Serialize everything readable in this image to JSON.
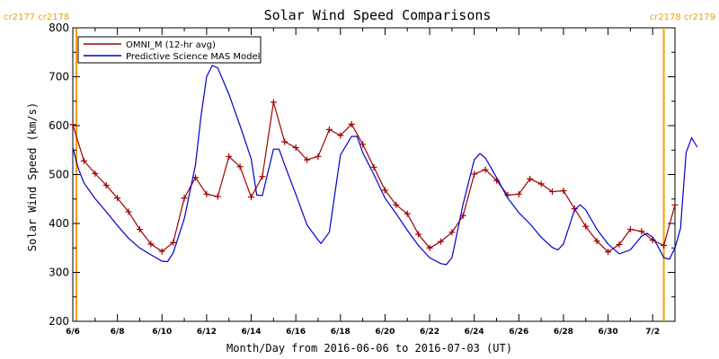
{
  "chart_data": {
    "type": "line",
    "title": "Solar Wind Speed Comparisons",
    "xlabel": "Month/Day from 2016-06-06 to 2016-07-03 (UT)",
    "ylabel": "Solar Wind Speed (km/s)",
    "xlim": [
      "2016-06-06",
      "2016-07-03"
    ],
    "ylim": [
      200,
      800
    ],
    "y_ticks": [
      "200",
      "300",
      "400",
      "500",
      "600",
      "700",
      "800"
    ],
    "x_ticks": [
      {
        "date": "2016-06-06",
        "label": "6/6"
      },
      {
        "date": "2016-06-08",
        "label": "6/8"
      },
      {
        "date": "2016-06-10",
        "label": "6/10"
      },
      {
        "date": "2016-06-12",
        "label": "6/12"
      },
      {
        "date": "2016-06-14",
        "label": "6/14"
      },
      {
        "date": "2016-06-16",
        "label": "6/16"
      },
      {
        "date": "2016-06-18",
        "label": "6/18"
      },
      {
        "date": "2016-06-20",
        "label": "6/20"
      },
      {
        "date": "2016-06-22",
        "label": "6/22"
      },
      {
        "date": "2016-06-24",
        "label": "6/24"
      },
      {
        "date": "2016-06-26",
        "label": "6/26"
      },
      {
        "date": "2016-06-28",
        "label": "6/28"
      },
      {
        "date": "2016-06-30",
        "label": "6/30"
      },
      {
        "date": "2016-07-02",
        "label": "7/2"
      }
    ],
    "grid": false,
    "legend_position": "top-left",
    "carrington_markers": [
      {
        "date": "2016-06-06T00:00",
        "left_label": "cr2177",
        "right_label": "cr2178",
        "corner": "top-left"
      },
      {
        "date": "2016-07-02T12:00",
        "left_label": "cr2178",
        "right_label": "cr2179",
        "corner": "top-right"
      }
    ],
    "marker_color": "#f5a000",
    "series": [
      {
        "name": "OMNI_M (12-hr avg)",
        "color": "#a00000",
        "marker": "plus",
        "points": [
          [
            "2016-06-06T00:00",
            602
          ],
          [
            "2016-06-06T12:00",
            528
          ],
          [
            "2016-06-07T00:00",
            502
          ],
          [
            "2016-06-07T12:00",
            478
          ],
          [
            "2016-06-08T00:00",
            452
          ],
          [
            "2016-06-08T12:00",
            424
          ],
          [
            "2016-06-09T00:00",
            388
          ],
          [
            "2016-06-09T12:00",
            358
          ],
          [
            "2016-06-10T00:00",
            343
          ],
          [
            "2016-06-10T12:00",
            361
          ],
          [
            "2016-06-11T00:00",
            452
          ],
          [
            "2016-06-11T12:00",
            494
          ],
          [
            "2016-06-12T00:00",
            460
          ],
          [
            "2016-06-12T12:00",
            455
          ],
          [
            "2016-06-13T00:00",
            537
          ],
          [
            "2016-06-13T12:00",
            516
          ],
          [
            "2016-06-14T00:00",
            454
          ],
          [
            "2016-06-14T12:00",
            496
          ],
          [
            "2016-06-15T00:00",
            648
          ],
          [
            "2016-06-15T12:00",
            567
          ],
          [
            "2016-06-16T00:00",
            555
          ],
          [
            "2016-06-16T12:00",
            530
          ],
          [
            "2016-06-17T00:00",
            537
          ],
          [
            "2016-06-17T12:00",
            592
          ],
          [
            "2016-06-18T00:00",
            580
          ],
          [
            "2016-06-18T12:00",
            603
          ],
          [
            "2016-06-19T00:00",
            562
          ],
          [
            "2016-06-19T12:00",
            515
          ],
          [
            "2016-06-20T00:00",
            468
          ],
          [
            "2016-06-20T12:00",
            438
          ],
          [
            "2016-06-21T00:00",
            420
          ],
          [
            "2016-06-21T12:00",
            378
          ],
          [
            "2016-06-22T00:00",
            350
          ],
          [
            "2016-06-22T12:00",
            363
          ],
          [
            "2016-06-23T00:00",
            382
          ],
          [
            "2016-06-23T12:00",
            416
          ],
          [
            "2016-06-24T00:00",
            501
          ],
          [
            "2016-06-24T12:00",
            510
          ],
          [
            "2016-06-25T00:00",
            488
          ],
          [
            "2016-06-25T12:00",
            458
          ],
          [
            "2016-06-26T00:00",
            460
          ],
          [
            "2016-06-26T12:00",
            491
          ],
          [
            "2016-06-27T00:00",
            481
          ],
          [
            "2016-06-27T12:00",
            465
          ],
          [
            "2016-06-28T00:00",
            467
          ],
          [
            "2016-06-28T12:00",
            430
          ],
          [
            "2016-06-29T00:00",
            394
          ],
          [
            "2016-06-29T12:00",
            364
          ],
          [
            "2016-06-30T00:00",
            342
          ],
          [
            "2016-06-30T12:00",
            357
          ],
          [
            "2016-07-01T00:00",
            388
          ],
          [
            "2016-07-01T12:00",
            384
          ],
          [
            "2016-07-02T00:00",
            366
          ],
          [
            "2016-07-02T12:00",
            355
          ],
          [
            "2016-07-03T00:00",
            438
          ]
        ]
      },
      {
        "name": "Predictive Science MAS Model",
        "color": "#0000cc",
        "marker": "none",
        "points": [
          [
            "2016-06-06T00:00",
            555
          ],
          [
            "2016-06-06T06:00",
            512
          ],
          [
            "2016-06-06T12:00",
            483
          ],
          [
            "2016-06-07T00:00",
            451
          ],
          [
            "2016-06-07T12:00",
            424
          ],
          [
            "2016-06-08T00:00",
            396
          ],
          [
            "2016-06-08T12:00",
            370
          ],
          [
            "2016-06-09T00:00",
            350
          ],
          [
            "2016-06-09T12:00",
            336
          ],
          [
            "2016-06-10T00:00",
            323
          ],
          [
            "2016-06-10T06:00",
            322
          ],
          [
            "2016-06-10T12:00",
            340
          ],
          [
            "2016-06-11T00:00",
            410
          ],
          [
            "2016-06-11T12:00",
            520
          ],
          [
            "2016-06-11T18:00",
            620
          ],
          [
            "2016-06-12T00:00",
            700
          ],
          [
            "2016-06-12T06:00",
            723
          ],
          [
            "2016-06-12T12:00",
            718
          ],
          [
            "2016-06-13T00:00",
            664
          ],
          [
            "2016-06-13T12:00",
            600
          ],
          [
            "2016-06-14T00:00",
            532
          ],
          [
            "2016-06-14T06:00",
            458
          ],
          [
            "2016-06-14T12:00",
            457
          ],
          [
            "2016-06-15T00:00",
            552
          ],
          [
            "2016-06-15T06:00",
            552
          ],
          [
            "2016-06-15T12:00",
            520
          ],
          [
            "2016-06-16T00:00",
            460
          ],
          [
            "2016-06-16T12:00",
            397
          ],
          [
            "2016-06-17T00:00",
            366
          ],
          [
            "2016-06-17T03:00",
            359
          ],
          [
            "2016-06-17T12:00",
            382
          ],
          [
            "2016-06-18T00:00",
            540
          ],
          [
            "2016-06-18T12:00",
            578
          ],
          [
            "2016-06-18T18:00",
            578
          ],
          [
            "2016-06-19T00:00",
            545
          ],
          [
            "2016-06-19T12:00",
            500
          ],
          [
            "2016-06-20T00:00",
            452
          ],
          [
            "2016-06-20T12:00",
            420
          ],
          [
            "2016-06-21T00:00",
            386
          ],
          [
            "2016-06-21T12:00",
            355
          ],
          [
            "2016-06-22T00:00",
            330
          ],
          [
            "2016-06-22T12:00",
            318
          ],
          [
            "2016-06-22T18:00",
            316
          ],
          [
            "2016-06-23T00:00",
            330
          ],
          [
            "2016-06-23T12:00",
            440
          ],
          [
            "2016-06-24T00:00",
            530
          ],
          [
            "2016-06-24T06:00",
            543
          ],
          [
            "2016-06-24T12:00",
            534
          ],
          [
            "2016-06-25T00:00",
            494
          ],
          [
            "2016-06-25T12:00",
            452
          ],
          [
            "2016-06-26T00:00",
            422
          ],
          [
            "2016-06-26T12:00",
            399
          ],
          [
            "2016-06-27T00:00",
            372
          ],
          [
            "2016-06-27T12:00",
            351
          ],
          [
            "2016-06-27T18:00",
            346
          ],
          [
            "2016-06-28T00:00",
            358
          ],
          [
            "2016-06-28T12:00",
            428
          ],
          [
            "2016-06-28T18:00",
            438
          ],
          [
            "2016-06-29T00:00",
            428
          ],
          [
            "2016-06-29T12:00",
            388
          ],
          [
            "2016-06-30T00:00",
            358
          ],
          [
            "2016-06-30T12:00",
            338
          ],
          [
            "2016-07-01T00:00",
            346
          ],
          [
            "2016-07-01T12:00",
            374
          ],
          [
            "2016-07-01T18:00",
            380
          ],
          [
            "2016-07-02T00:00",
            372
          ],
          [
            "2016-07-02T06:00",
            352
          ],
          [
            "2016-07-02T12:00",
            330
          ],
          [
            "2016-07-02T18:00",
            327
          ],
          [
            "2016-07-03T00:00",
            350
          ],
          [
            "2016-07-03T06:00",
            390
          ],
          [
            "2016-07-03T12:00",
            545
          ],
          [
            "2016-07-03T18:00",
            575
          ],
          [
            "2016-07-04T00:00",
            556
          ]
        ]
      }
    ]
  }
}
